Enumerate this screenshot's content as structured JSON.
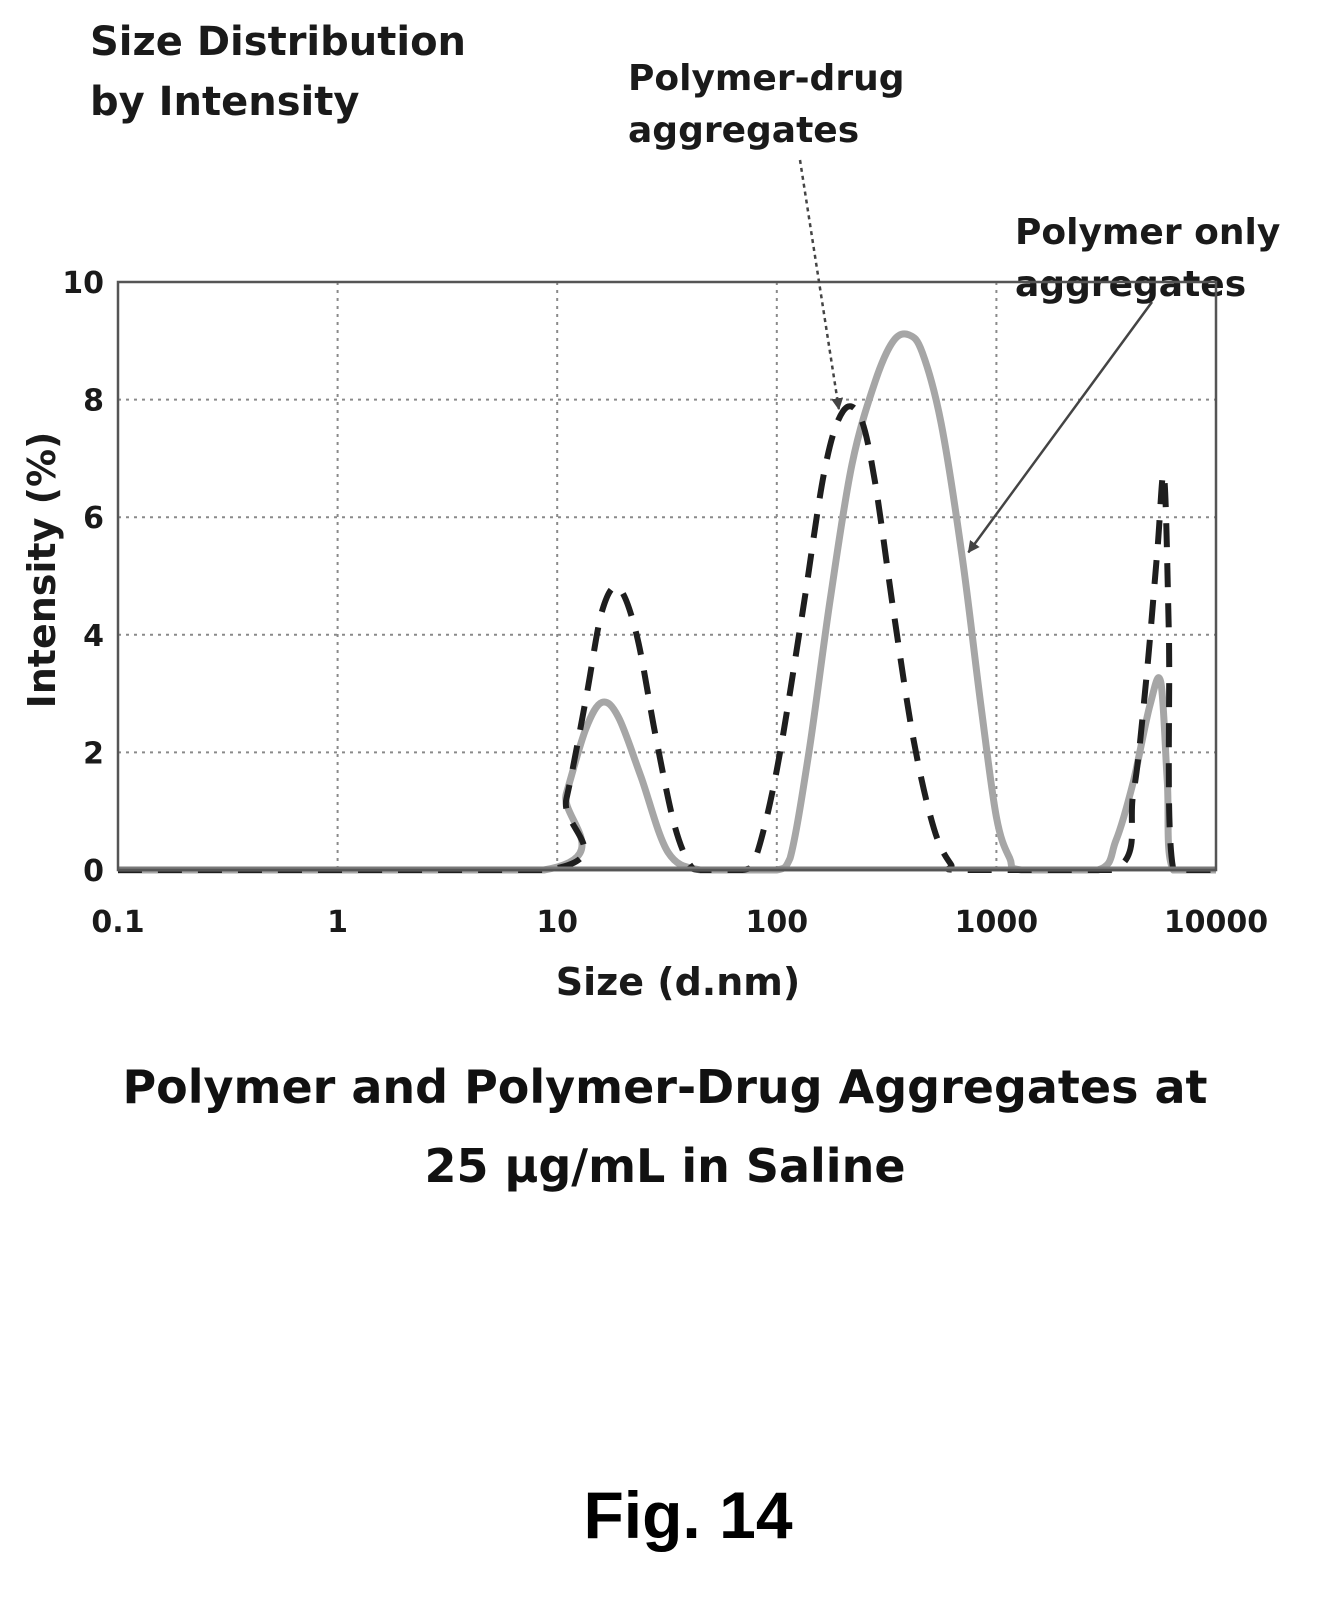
{
  "figure_label": "Fig. 14",
  "caption": {
    "line1": "Polymer and Polymer-Drug Aggregates at",
    "line2": "25 µg/mL in Saline"
  },
  "chart_data": {
    "type": "line",
    "title_lines": [
      "Size Distribution",
      "by Intensity"
    ],
    "xlabel": "Size (d.nm)",
    "ylabel": "Intensity (%)",
    "xscale": "log",
    "xlim": [
      0.1,
      10000
    ],
    "ylim": [
      0,
      10
    ],
    "xticks": [
      "0.1",
      "1",
      "10",
      "100",
      "1000",
      "10000"
    ],
    "yticks": [
      "0",
      "2",
      "4",
      "6",
      "8",
      "10"
    ],
    "grid": true,
    "annotations": [
      {
        "text_lines": [
          "Polymer-drug",
          "aggregates"
        ],
        "points_to_series": "polymer-drug",
        "target": [
          200,
          7.7
        ]
      },
      {
        "text_lines": [
          "Polymer only",
          "aggregates"
        ],
        "points_to_series": "polymer-only",
        "target": [
          700,
          5.3
        ]
      }
    ],
    "series": [
      {
        "id": "polymer-only",
        "style": "solid",
        "color": "#a6a6a6",
        "x": [
          0.1,
          8.7,
          11,
          13.5,
          16,
          19,
          24,
          32,
          45,
          70,
          100,
          115,
          140,
          175,
          220,
          280,
          340,
          400,
          460,
          560,
          700,
          850,
          1000,
          1150,
          1300,
          2900,
          3500,
          4200,
          5000,
          5600,
          6000,
          6400,
          10000
        ],
        "y": [
          0,
          0,
          1.3,
          2.4,
          2.85,
          2.6,
          1.6,
          0.3,
          0,
          0,
          0,
          0.2,
          2.0,
          4.6,
          6.9,
          8.3,
          9.0,
          9.1,
          8.8,
          7.6,
          5.3,
          2.8,
          0.9,
          0.2,
          0,
          0,
          0.5,
          1.5,
          2.8,
          3.2,
          1.5,
          0,
          0
        ]
      },
      {
        "id": "polymer-drug",
        "style": "dashed",
        "color": "#1e1e1e",
        "x": [
          0.1,
          9,
          11,
          13.5,
          16,
          19,
          23,
          28,
          34,
          40,
          45,
          70,
          80,
          100,
          130,
          165,
          200,
          240,
          280,
          340,
          420,
          520,
          620,
          700,
          3400,
          4200,
          4800,
          5400,
          5800,
          6100,
          6400,
          10000
        ],
        "y": [
          0,
          0,
          1.2,
          2.9,
          4.4,
          4.8,
          4.0,
          2.3,
          0.8,
          0.1,
          0,
          0,
          0.2,
          1.7,
          4.3,
          6.8,
          7.8,
          7.7,
          6.6,
          4.4,
          2.2,
          0.7,
          0.1,
          0,
          0,
          1.3,
          3.2,
          5.4,
          6.7,
          4.0,
          0,
          0
        ]
      }
    ]
  }
}
